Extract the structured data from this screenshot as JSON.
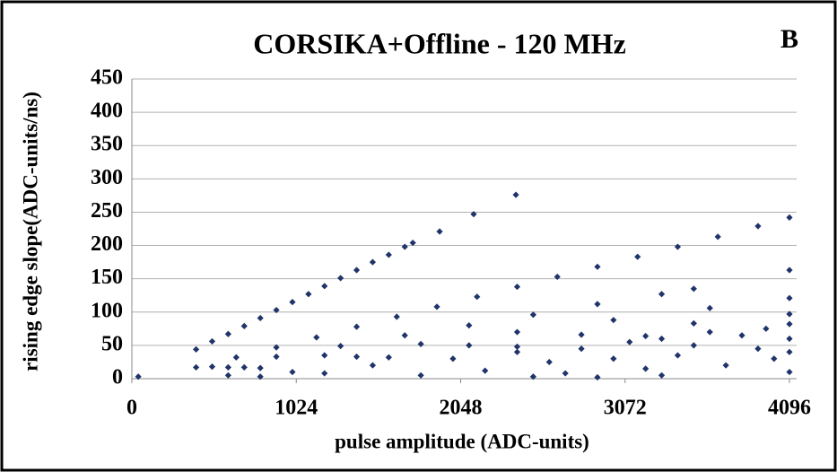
{
  "chart_data": {
    "type": "scatter",
    "title": "CORSIKA+Offline - 120 MHz",
    "panel_label": "B",
    "x_label": "pulse amplitude (ADC-units)",
    "y_label": "rising edge slope(ADC-units/ns)",
    "xlim": [
      0,
      4096
    ],
    "ylim": [
      0,
      450
    ],
    "xticks": [
      0,
      1024,
      2048,
      3072,
      4096
    ],
    "yticks": [
      0,
      50,
      100,
      150,
      200,
      250,
      300,
      350,
      400,
      450
    ],
    "grid": true,
    "series": [
      {
        "color": "#1f3468",
        "x": [
          40,
          400,
          500,
          600,
          700,
          800,
          900,
          1000,
          1100,
          1200,
          1300,
          1400,
          1500,
          1600,
          1700,
          1750,
          1917,
          2129,
          2392,
          400,
          650,
          900,
          1150,
          1400,
          1650,
          1900,
          2150,
          2400,
          2650,
          2900,
          3150,
          3400,
          3650,
          3900,
          4096,
          500,
          900,
          1300,
          1700,
          2100,
          2500,
          2900,
          3300,
          3500,
          4096,
          600,
          1200,
          1800,
          2400,
          3000,
          3600,
          4096,
          700,
          1400,
          2100,
          2800,
          3500,
          4096,
          800,
          1600,
          2400,
          3200,
          4096,
          1200,
          1500,
          1800,
          2000,
          2200,
          2400,
          2600,
          2700,
          2800,
          3000,
          3100,
          3200,
          3300,
          3400,
          3500,
          3600,
          3700,
          3800,
          3900,
          4000,
          4096,
          4096,
          4096,
          3950,
          3300,
          2900,
          2500,
          600,
          800,
          1000
        ],
        "values": [
          3,
          44,
          56,
          67,
          79,
          91,
          103,
          115,
          127,
          139,
          151,
          163,
          175,
          186,
          198,
          204,
          221,
          247,
          276,
          17,
          32,
          47,
          62,
          78,
          93,
          108,
          123,
          138,
          153,
          168,
          183,
          198,
          213,
          229,
          242,
          18,
          33,
          49,
          65,
          80,
          96,
          112,
          127,
          135,
          163,
          17,
          35,
          52,
          70,
          88,
          106,
          121,
          17,
          33,
          50,
          66,
          83,
          97,
          16,
          32,
          48,
          64,
          82,
          8,
          20,
          5,
          30,
          12,
          40,
          25,
          8,
          45,
          30,
          55,
          15,
          60,
          35,
          50,
          70,
          20,
          65,
          45,
          30,
          10,
          40,
          60,
          75,
          5,
          2,
          3,
          5,
          3,
          10
        ]
      }
    ]
  }
}
